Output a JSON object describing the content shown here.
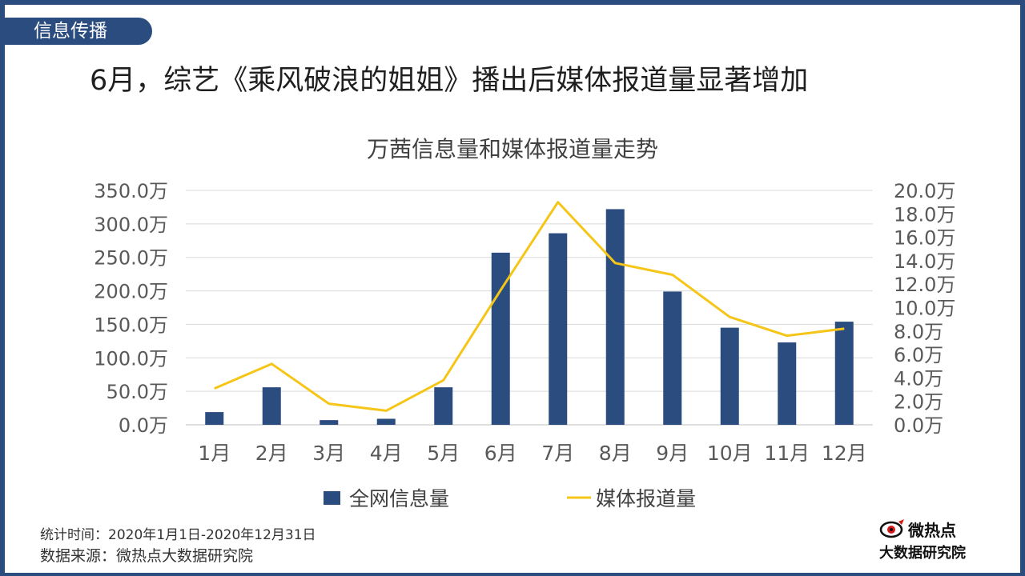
{
  "section_tag": "信息传播",
  "headline": "6月，综艺《乘风破浪的姐姐》播出后媒体报道量显著增加",
  "footer": {
    "time": "统计时间：2020年1月1日-2020年12月31日",
    "source": "数据来源：微热点大数据研究院"
  },
  "logo": {
    "name": "微热点",
    "sub": "大数据研究院",
    "icon": "eye-icon"
  },
  "colors": {
    "frame": "#2b4c7e",
    "bar": "#2b4c7e",
    "line": "#f5c518",
    "grid": "#d9d9d9",
    "logo_red": "#d7191c"
  },
  "chart_data": {
    "type": "bar",
    "title": "万茜信息量和媒体报道量走势",
    "categories": [
      "1月",
      "2月",
      "3月",
      "4月",
      "5月",
      "6月",
      "7月",
      "8月",
      "9月",
      "10月",
      "11月",
      "12月"
    ],
    "y_left": {
      "ylim": [
        0,
        350
      ],
      "ticks": [
        0,
        50,
        100,
        150,
        200,
        250,
        300,
        350
      ],
      "tick_labels": [
        "0.0万",
        "50.0万",
        "100.0万",
        "150.0万",
        "200.0万",
        "250.0万",
        "300.0万",
        "350.0万"
      ]
    },
    "y_right": {
      "ylim": [
        0,
        20
      ],
      "ticks": [
        0,
        2,
        4,
        6,
        8,
        10,
        12,
        14,
        16,
        18,
        20
      ],
      "tick_labels": [
        "0.0万",
        "2.0万",
        "4.0万",
        "6.0万",
        "8.0万",
        "10.0万",
        "12.0万",
        "14.0万",
        "16.0万",
        "18.0万",
        "20.0万"
      ]
    },
    "series": [
      {
        "name": "全网信息量",
        "type": "bar",
        "axis": "left",
        "unit": "万",
        "values": [
          19,
          56,
          7,
          9,
          56,
          257,
          286,
          322,
          199,
          145,
          123,
          154
        ]
      },
      {
        "name": "媒体报道量",
        "type": "line",
        "axis": "right",
        "unit": "万",
        "values": [
          3.1,
          5.2,
          1.8,
          1.2,
          3.8,
          11.5,
          19.0,
          13.8,
          12.8,
          9.2,
          7.6,
          8.2
        ]
      }
    ],
    "grid": true,
    "legend": "bottom"
  }
}
